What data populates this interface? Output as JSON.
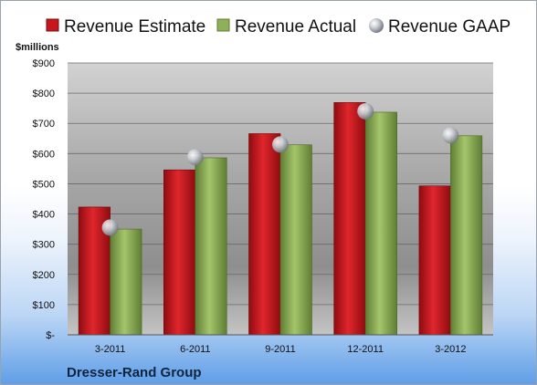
{
  "chart_data": {
    "type": "bar",
    "categories": [
      "3-2011",
      "6-2011",
      "9-2011",
      "12-2011",
      "3-2012"
    ],
    "series": [
      {
        "name": "Revenue Estimate",
        "values": [
          423,
          546,
          666,
          769,
          493
        ],
        "color": "#c8161d"
      },
      {
        "name": "Revenue Actual",
        "values": [
          350,
          586,
          629,
          737,
          659
        ],
        "color": "#8fb05a"
      },
      {
        "name": "Revenue GAAP",
        "values": [
          355,
          588,
          630,
          740,
          660
        ],
        "color": "#b8bfc8",
        "marker": "sphere"
      }
    ],
    "ylabel": "$millions",
    "ylim": [
      0,
      900
    ],
    "yticks": [
      0,
      100,
      200,
      300,
      400,
      500,
      600,
      700,
      800,
      900
    ],
    "ytick_labels": [
      "$-",
      "$100",
      "$200",
      "$300",
      "$400",
      "$500",
      "$600",
      "$700",
      "$800",
      "$900"
    ],
    "grid": true,
    "legend_position": "top"
  },
  "footer": {
    "company": "Dresser-Rand Group"
  }
}
